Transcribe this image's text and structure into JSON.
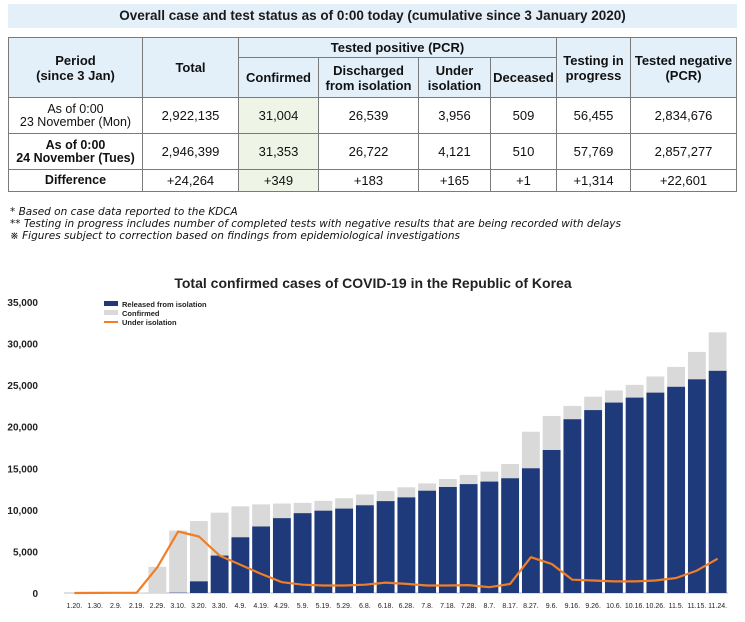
{
  "table": {
    "title": "Overall case and test status as of 0:00 today (cumulative since 3 January 2020)",
    "headers": {
      "period": [
        "Period",
        "(since 3 Jan)"
      ],
      "total": "Total",
      "tested_positive": "Tested positive (PCR)",
      "confirmed": "Confirmed",
      "discharged": [
        "Discharged",
        "from isolation"
      ],
      "under_isolation": [
        "Under",
        "isolation"
      ],
      "deceased": "Deceased",
      "testing": [
        "Testing in",
        "progress"
      ],
      "tested_negative": [
        "Tested negative",
        "(PCR)"
      ]
    },
    "rows": [
      {
        "label": [
          "As of 0:00",
          "23 November (Mon)"
        ],
        "total": "2,922,135",
        "confirmed": "31,004",
        "discharged": "26,539",
        "under_isolation": "3,956",
        "deceased": "509",
        "testing": "56,455",
        "negative": "2,834,676"
      },
      {
        "label": [
          "As of 0:00",
          "24 November (Tues)"
        ],
        "total": "2,946,399",
        "confirmed": "31,353",
        "discharged": "26,722",
        "under_isolation": "4,121",
        "deceased": "510",
        "testing": "57,769",
        "negative": "2,857,277"
      },
      {
        "label": [
          "Difference"
        ],
        "total": "+24,264",
        "confirmed": "+349",
        "discharged": "+183",
        "under_isolation": "+165",
        "deceased": "+1",
        "testing": "+1,314",
        "negative": "+22,601"
      }
    ]
  },
  "notes": [
    "* Based on case data reported to the KDCA",
    "** Testing in progress includes number of completed tests with negative results that are being recorded with delays",
    "※ Figures subject to correction based on findings from epidemiological investigations"
  ],
  "chart_data": {
    "type": "bar",
    "title": "Total confirmed cases of COVID-19 in the Republic of Korea",
    "xlabel": "",
    "ylabel": "",
    "ylim": [
      0,
      35000
    ],
    "yticks": [
      0,
      5000,
      10000,
      15000,
      20000,
      25000,
      30000,
      35000
    ],
    "ytick_labels": [
      "0",
      "5,000",
      "10,000",
      "15,000",
      "20,000",
      "25,000",
      "30,000",
      "35,000"
    ],
    "grid": false,
    "legend": "top-left",
    "categories": [
      "1.20.",
      "1.30.",
      "2.9.",
      "2.19.",
      "2.29.",
      "3.10.",
      "3.20.",
      "3.30.",
      "4.9.",
      "4.19.",
      "4.29.",
      "5.9.",
      "5.19.",
      "5.29.",
      "6.8.",
      "6.18.",
      "6.28.",
      "7.8.",
      "7.18.",
      "7.28.",
      "8.7.",
      "8.17.",
      "8.27.",
      "9.6.",
      "9.16.",
      "9.26.",
      "10.6.",
      "10.16.",
      "10.26.",
      "11.5.",
      "11.15.",
      "11.24."
    ],
    "series": [
      {
        "name": "Released from isolation",
        "type": "bar",
        "color": "#1f3a7a",
        "values": [
          0,
          0,
          0,
          0,
          0,
          40,
          1400,
          4500,
          6700,
          8000,
          9000,
          9600,
          9900,
          10150,
          10550,
          11050,
          11500,
          12300,
          12750,
          13100,
          13400,
          13800,
          15000,
          17200,
          20900,
          22000,
          22900,
          23500,
          24100,
          24800,
          25700,
          26722
        ]
      },
      {
        "name": "Confirmed",
        "type": "bar",
        "color": "#d9d9d9",
        "values": [
          1,
          11,
          27,
          46,
          3150,
          7513,
          8652,
          9661,
          10423,
          10661,
          10761,
          10840,
          11078,
          11402,
          11852,
          12257,
          12715,
          13181,
          13711,
          14203,
          14598,
          15515,
          19400,
          21296,
          22504,
          23611,
          24353,
          25035,
          26043,
          27195,
          28998,
          31353
        ]
      },
      {
        "name": "Under isolation",
        "type": "line",
        "color": "#f07e26",
        "values": [
          1,
          11,
          25,
          30,
          3100,
          7400,
          6800,
          4500,
          3400,
          2300,
          1300,
          1000,
          900,
          900,
          1000,
          1250,
          1100,
          900,
          900,
          950,
          700,
          1100,
          4300,
          3500,
          1600,
          1500,
          1400,
          1400,
          1500,
          1800,
          2700,
          4121
        ]
      }
    ]
  }
}
